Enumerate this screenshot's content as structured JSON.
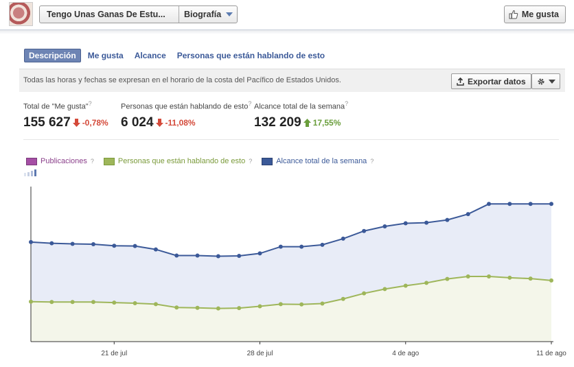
{
  "header": {
    "page_name": "Tengo Unas Ganas De Estu...",
    "view": "Biografía",
    "like_label": "Me gusta"
  },
  "tabs": [
    {
      "label": "Descripción",
      "active": true
    },
    {
      "label": "Me gusta",
      "active": false
    },
    {
      "label": "Alcance",
      "active": false
    },
    {
      "label": "Personas que están hablando de esto",
      "active": false
    }
  ],
  "info": {
    "note": "Todas las horas y fechas se expresan en el horario de la costa del Pacífico de Estados Unidos.",
    "export_label": "Exportar datos"
  },
  "stats": [
    {
      "label": "Total de \"Me gusta\"",
      "value": "155 627",
      "change": "-0,78%",
      "direction": "down"
    },
    {
      "label": "Personas que están hablando de esto",
      "value": "6 024",
      "change": "-11,08%",
      "direction": "down"
    },
    {
      "label": "Alcance total de la semana",
      "value": "132 209",
      "change": "17,55%",
      "direction": "up"
    }
  ],
  "legend": [
    {
      "label": "Publicaciones",
      "color": "#a54fa5",
      "text_color": "#8a3f8a"
    },
    {
      "label": "Personas que están hablando de esto",
      "color": "#9eb65a",
      "text_color": "#7a9a3a"
    },
    {
      "label": "Alcance total de la semana",
      "color": "#3b5998",
      "text_color": "#3b5998"
    }
  ],
  "colors": {
    "reach_line": "#3b5998",
    "reach_fill": "#e8ecf7",
    "talking_line": "#9eb65a",
    "talking_fill": "#f4f6ea",
    "tab_active_bg": "#6d84b4",
    "link": "#3b5998"
  },
  "chart_data": {
    "type": "area",
    "x": [
      "jul 17",
      "jul 18",
      "jul 19",
      "jul 20",
      "jul 21",
      "jul 22",
      "jul 23",
      "jul 24",
      "jul 25",
      "jul 26",
      "jul 27",
      "jul 28",
      "jul 29",
      "jul 30",
      "jul 31",
      "ago 1",
      "ago 2",
      "ago 3",
      "ago 4",
      "ago 5",
      "ago 6",
      "ago 7",
      "ago 8",
      "ago 9",
      "ago 10",
      "ago 11"
    ],
    "x_ticks": [
      "21 de jul",
      "28 de jul",
      "4 de ago",
      "11 de ago"
    ],
    "x_tick_positions": [
      4,
      11,
      18,
      25
    ],
    "ylim": [
      0,
      1
    ],
    "series": [
      {
        "name": "Alcance total de la semana",
        "values": [
          0.648,
          0.64,
          0.636,
          0.634,
          0.624,
          0.622,
          0.6,
          0.56,
          0.56,
          0.556,
          0.558,
          0.574,
          0.618,
          0.618,
          0.63,
          0.67,
          0.72,
          0.75,
          0.77,
          0.774,
          0.792,
          0.83,
          0.896,
          0.896,
          0.896,
          0.896
        ]
      },
      {
        "name": "Personas que están hablando de esto",
        "values": [
          0.26,
          0.258,
          0.258,
          0.258,
          0.254,
          0.25,
          0.244,
          0.222,
          0.22,
          0.216,
          0.218,
          0.23,
          0.244,
          0.242,
          0.248,
          0.278,
          0.314,
          0.342,
          0.364,
          0.382,
          0.408,
          0.424,
          0.424,
          0.416,
          0.41,
          0.398
        ]
      }
    ]
  }
}
